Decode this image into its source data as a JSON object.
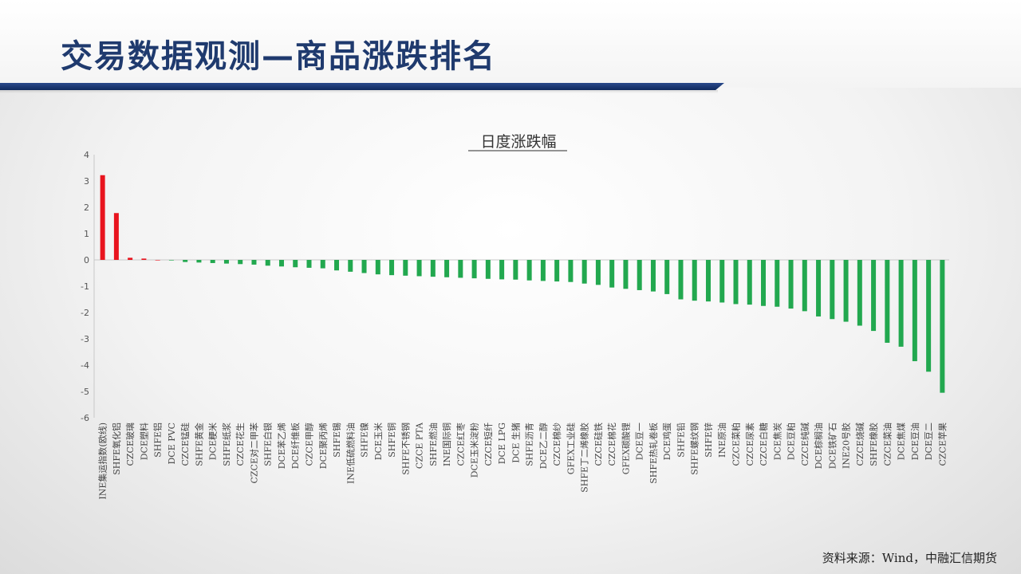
{
  "page": {
    "title": "交易数据观测—商品涨跌排名",
    "source": "资料来源：Wind，中融汇信期货"
  },
  "colors": {
    "up": "#e8141e",
    "down": "#22a84f",
    "title": "#1f3a6e",
    "rule": "#1a3876"
  },
  "chart_data": {
    "type": "bar",
    "title": "日度涨跌幅",
    "xlabel": "",
    "ylabel": "",
    "ylim": [
      -6,
      4
    ],
    "yticks": [
      4,
      3,
      2,
      1,
      0,
      -1,
      -2,
      -3,
      -4,
      -5,
      -6
    ],
    "grid": false,
    "legend": "none",
    "categories": [
      "INE集运指数(欧线)",
      "SHFE氧化铝",
      "CZCE玻璃",
      "DCE塑料",
      "SHFE铝",
      "DCE PVC",
      "CZCE锰硅",
      "SHFE黄金",
      "DCE粳米",
      "SHFE纸浆",
      "CZCE花生",
      "CZCE对二甲苯",
      "SHFE白银",
      "DCE苯乙烯",
      "DCE纤维板",
      "CZCE甲醇",
      "DCE聚丙烯",
      "SHFE锡",
      "INE低硫燃料油",
      "SHFE镍",
      "DCE玉米",
      "SHFE铜",
      "SHFE不锈钢",
      "CZCE PTA",
      "SHFE燃油",
      "INE国际铜",
      "CZCE红枣",
      "DCE玉米淀粉",
      "CZCE短纤",
      "DCE LPG",
      "DCE 生猪",
      "SHFE沥青",
      "DCE乙二醇",
      "CZCE棉纱",
      "GFEX工业硅",
      "SHFE丁二烯橡胶",
      "CZCE硅铁",
      "CZCE棉花",
      "GFEX碳酸锂",
      "DCE豆一",
      "SHFE热轧卷板",
      "DCE鸡蛋",
      "SHFE铅",
      "SHFE螺纹钢",
      "SHFE锌",
      "INE原油",
      "CZCE菜粕",
      "CZCE尿素",
      "CZCE白糖",
      "DCE焦炭",
      "DCE豆粕",
      "CZCE纯碱",
      "DCE棕榈油",
      "DCE铁矿石",
      "INE20号胶",
      "CZCE烧碱",
      "SHFE橡胶",
      "CZCE菜油",
      "DCE焦煤",
      "DCE豆油",
      "DCE豆二",
      "CZCE苹果"
    ],
    "values": [
      3.22,
      1.78,
      0.08,
      0.05,
      0.0,
      -0.02,
      -0.08,
      -0.1,
      -0.12,
      -0.14,
      -0.16,
      -0.18,
      -0.22,
      -0.25,
      -0.28,
      -0.3,
      -0.32,
      -0.4,
      -0.45,
      -0.5,
      -0.55,
      -0.58,
      -0.6,
      -0.62,
      -0.64,
      -0.66,
      -0.68,
      -0.7,
      -0.72,
      -0.74,
      -0.75,
      -0.78,
      -0.8,
      -0.82,
      -0.84,
      -0.9,
      -0.95,
      -1.05,
      -1.1,
      -1.15,
      -1.2,
      -1.3,
      -1.5,
      -1.55,
      -1.58,
      -1.62,
      -1.68,
      -1.7,
      -1.75,
      -1.78,
      -1.85,
      -1.95,
      -2.15,
      -2.25,
      -2.35,
      -2.5,
      -2.7,
      -3.15,
      -3.3,
      -3.85,
      -4.25,
      -5.05
    ]
  }
}
